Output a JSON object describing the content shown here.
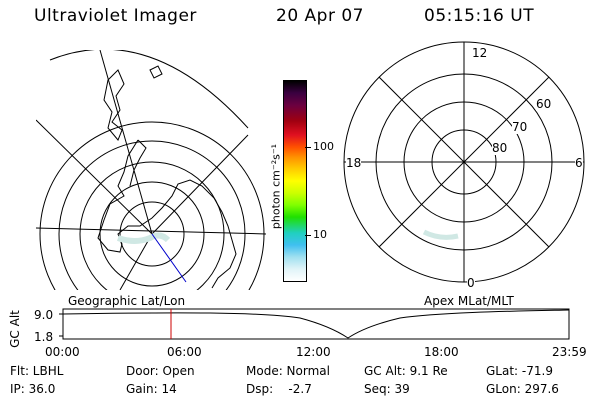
{
  "header": {
    "title": "Ultraviolet Imager",
    "date": "20 Apr 07",
    "time": "05:15:16 UT"
  },
  "colorbar": {
    "label": "photon cm⁻²s⁻¹",
    "ticks": [
      "100",
      "10"
    ],
    "colors": [
      "#000000",
      "#3a0040",
      "#6a0040",
      "#a00010",
      "#e01020",
      "#ff5000",
      "#ff9000",
      "#ffcc00",
      "#ffff00",
      "#ccff00",
      "#80ff00",
      "#20e000",
      "#20d0c0",
      "#40c0f0",
      "#a0e0f0",
      "#e0f4f8",
      "#ffffff"
    ]
  },
  "apex_plot": {
    "labels": {
      "top": "12",
      "left": "18",
      "right": "6",
      "bottom": "0"
    },
    "rings": [
      "60",
      "70",
      "80"
    ]
  },
  "timeline": {
    "left_title": "Geographic Lat/Lon",
    "right_title": "Apex MLat/MLT",
    "axis_title": "GC Alt",
    "y_ticks": [
      "9.0",
      "1.8"
    ],
    "x_ticks": [
      "00:00",
      "06:00",
      "12:00",
      "18:00",
      "23:59"
    ]
  },
  "status": {
    "filter": "Flt: LBHL",
    "ip": "IP: 36.0",
    "door": "Door: Open",
    "gain": "Gain: 14",
    "mode": "Mode: Normal",
    "dsp": "Dsp:    -2.7",
    "gc_alt": "GC Alt: 9.1 Re",
    "seq": "Seq: 39",
    "glat": "GLat: -71.9",
    "glon": "GLon: 297.6"
  },
  "colors": {
    "time_marker": "#cc0000",
    "trajectory": "#0000cc",
    "aurora": "#d0e8e4"
  }
}
